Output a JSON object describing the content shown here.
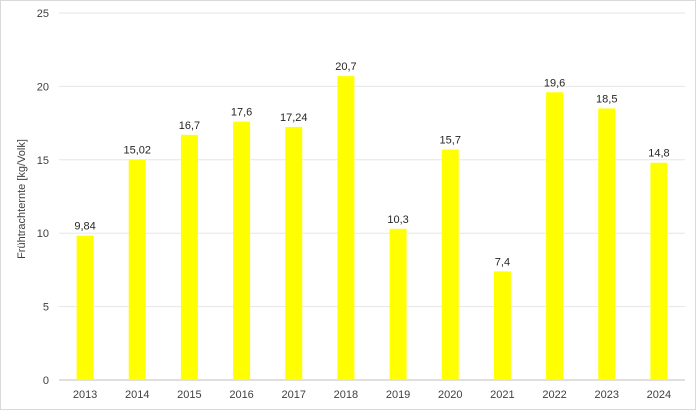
{
  "chart_data": {
    "type": "bar",
    "title": "",
    "xlabel": "",
    "ylabel": "Frühtrachternte [kg/Volk]",
    "categories": [
      "2013",
      "2014",
      "2015",
      "2016",
      "2017",
      "2018",
      "2019",
      "2020",
      "2021",
      "2022",
      "2023",
      "2024"
    ],
    "values": [
      9.84,
      15.02,
      16.7,
      17.6,
      17.24,
      20.7,
      10.3,
      15.7,
      7.4,
      19.6,
      18.5,
      14.8
    ],
    "data_labels": [
      "9,84",
      "15,02",
      "16,7",
      "17,6",
      "17,24",
      "20,7",
      "10,3",
      "15,7",
      "7,4",
      "19,6",
      "18,5",
      "14,8"
    ],
    "y_ticks": [
      0,
      5,
      10,
      15,
      20,
      25
    ],
    "ylim": [
      0,
      25
    ],
    "grid": true,
    "legend": "none",
    "bar_color": "#ffff00",
    "grid_color": "#e6e6e6"
  }
}
